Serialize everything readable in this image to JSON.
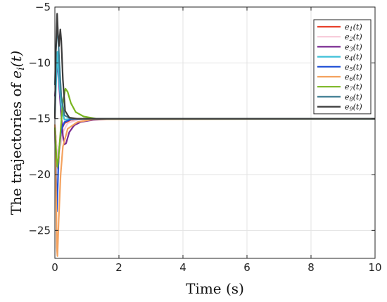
{
  "chart_data": {
    "type": "line",
    "xlabel": "Time (s)",
    "ylabel": "The trajectories of e_i(t)",
    "xlim": [
      0,
      10
    ],
    "ylim": [
      -27.5,
      -5
    ],
    "xticks": [
      0,
      2,
      4,
      6,
      8,
      10
    ],
    "yticks": [
      -5,
      -10,
      -15,
      -20,
      -25
    ],
    "grid": true,
    "legend_position": "top-right",
    "series": [
      {
        "name": "e1(t)",
        "color": "#e8412c",
        "points": [
          [
            0,
            -15.6
          ],
          [
            0.05,
            -17.5
          ],
          [
            0.1,
            -19.5
          ],
          [
            0.15,
            -17.5
          ],
          [
            0.2,
            -16
          ],
          [
            0.3,
            -15.4
          ],
          [
            0.5,
            -15.1
          ],
          [
            1,
            -15
          ],
          [
            10,
            -15
          ]
        ]
      },
      {
        "name": "e2(t)",
        "color": "#f7c9d8",
        "points": [
          [
            0,
            -15.8
          ],
          [
            0.05,
            -17.5
          ],
          [
            0.1,
            -19
          ],
          [
            0.15,
            -17.8
          ],
          [
            0.25,
            -16.2
          ],
          [
            0.4,
            -15.4
          ],
          [
            0.7,
            -15.1
          ],
          [
            1.2,
            -15
          ],
          [
            10,
            -15
          ]
        ]
      },
      {
        "name": "e3(t)",
        "color": "#7a2a90",
        "points": [
          [
            0,
            -13
          ],
          [
            0.05,
            -11
          ],
          [
            0.08,
            -9.8
          ],
          [
            0.12,
            -11.5
          ],
          [
            0.18,
            -14
          ],
          [
            0.25,
            -16.5
          ],
          [
            0.3,
            -17.3
          ],
          [
            0.35,
            -17.2
          ],
          [
            0.45,
            -16.2
          ],
          [
            0.6,
            -15.6
          ],
          [
            0.8,
            -15.3
          ],
          [
            1.2,
            -15.1
          ],
          [
            2,
            -15
          ],
          [
            10,
            -15
          ]
        ]
      },
      {
        "name": "e4(t)",
        "color": "#3fc0d8",
        "points": [
          [
            0,
            -14.5
          ],
          [
            0.05,
            -11
          ],
          [
            0.08,
            -9
          ],
          [
            0.12,
            -11
          ],
          [
            0.2,
            -14
          ],
          [
            0.3,
            -15.1
          ],
          [
            0.5,
            -15
          ],
          [
            10,
            -15
          ]
        ]
      },
      {
        "name": "e5(t)",
        "color": "#1f4fd6",
        "points": [
          [
            0,
            -16
          ],
          [
            0.03,
            -19
          ],
          [
            0.06,
            -23.3
          ],
          [
            0.09,
            -21
          ],
          [
            0.12,
            -18
          ],
          [
            0.2,
            -16
          ],
          [
            0.3,
            -15.3
          ],
          [
            0.5,
            -15.05
          ],
          [
            1,
            -15
          ],
          [
            10,
            -15
          ]
        ]
      },
      {
        "name": "e6(t)",
        "color": "#f4a25f",
        "points": [
          [
            0,
            -15.5
          ],
          [
            0.03,
            -20
          ],
          [
            0.06,
            -26.5
          ],
          [
            0.08,
            -27.3
          ],
          [
            0.12,
            -24
          ],
          [
            0.18,
            -20
          ],
          [
            0.25,
            -17.5
          ],
          [
            0.4,
            -15.9
          ],
          [
            0.7,
            -15.3
          ],
          [
            1.2,
            -15.05
          ],
          [
            10,
            -15
          ]
        ]
      },
      {
        "name": "e7(t)",
        "color": "#7ab520",
        "points": [
          [
            0,
            -15.8
          ],
          [
            0.05,
            -18.5
          ],
          [
            0.08,
            -19.3
          ],
          [
            0.12,
            -18.3
          ],
          [
            0.18,
            -16
          ],
          [
            0.25,
            -13.5
          ],
          [
            0.33,
            -12.3
          ],
          [
            0.4,
            -12.6
          ],
          [
            0.5,
            -13.6
          ],
          [
            0.65,
            -14.4
          ],
          [
            0.9,
            -14.8
          ],
          [
            1.3,
            -15
          ],
          [
            10,
            -15
          ]
        ]
      },
      {
        "name": "e8(t)",
        "color": "#3a7a8f",
        "points": [
          [
            0,
            -12
          ],
          [
            0.03,
            -9
          ],
          [
            0.07,
            -7
          ],
          [
            0.1,
            -7.5
          ],
          [
            0.14,
            -10
          ],
          [
            0.2,
            -13
          ],
          [
            0.3,
            -14.7
          ],
          [
            0.5,
            -15
          ],
          [
            10,
            -15
          ]
        ]
      },
      {
        "name": "e9(t)",
        "color": "#3b3b3b",
        "points": [
          [
            0,
            -15
          ],
          [
            0.03,
            -9
          ],
          [
            0.07,
            -5.6
          ],
          [
            0.1,
            -7.5
          ],
          [
            0.13,
            -8.5
          ],
          [
            0.17,
            -7
          ],
          [
            0.2,
            -8
          ],
          [
            0.25,
            -11.5
          ],
          [
            0.32,
            -14.3
          ],
          [
            0.45,
            -14.9
          ],
          [
            0.7,
            -15
          ],
          [
            10,
            -15
          ]
        ]
      }
    ]
  }
}
